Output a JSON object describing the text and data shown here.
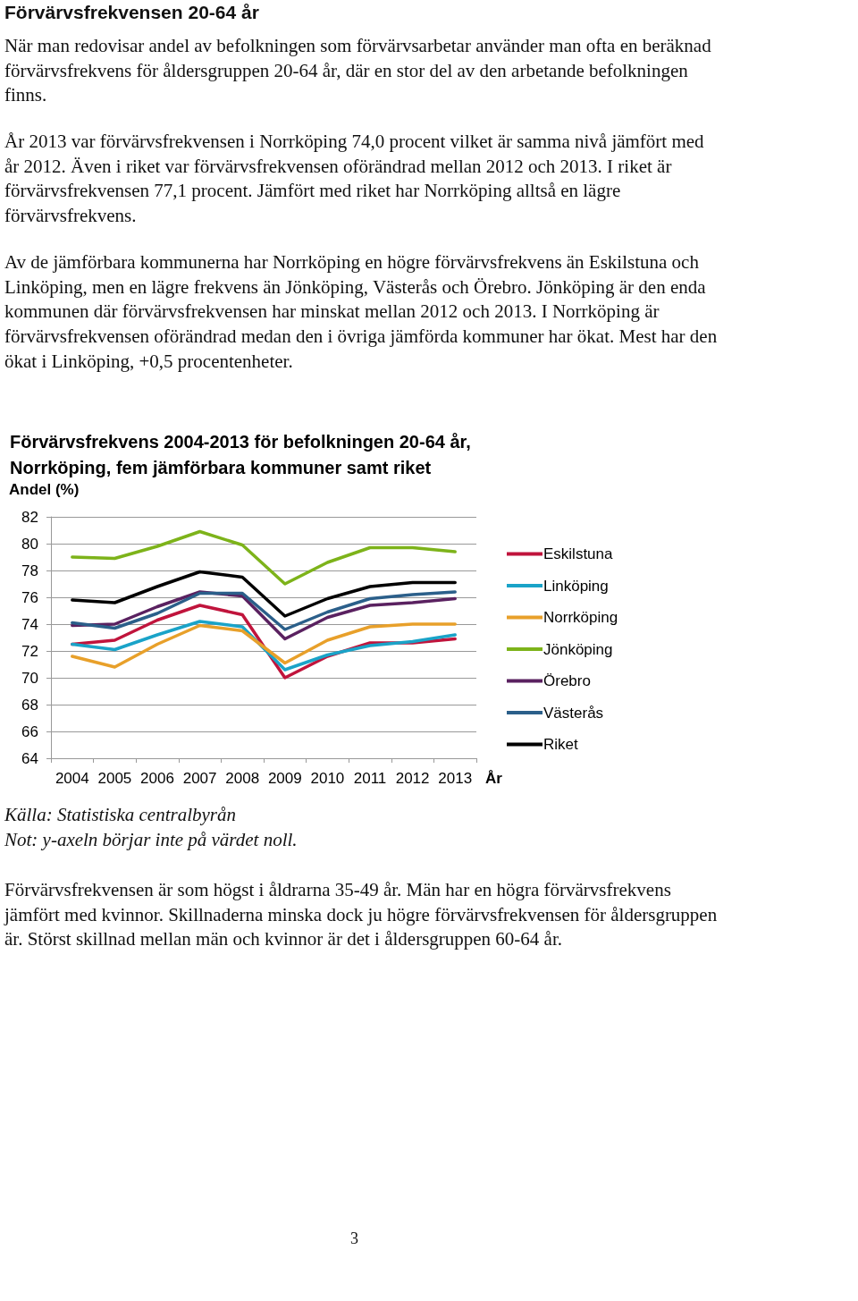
{
  "chart_data": {
    "type": "line",
    "title": "Förvärvsfrekvens 2004-2013 för befolkningen 20-64 år,\nNorrköping, fem jämförbara kommuner samt riket",
    "ylabel": "Andel (%)",
    "xlabel": "År",
    "annotations": [
      "Förvärvsfrekvensen 20-64 år",
      "När man redovisar andel av befolkningen som förvärvsarbetar använder man ofta en beräknad förvärvsfrekvens för åldersgruppen 20-64 år, där en stor del av den arbetande befolkningen finns.",
      "År 2013 var förvärvsfrekvensen i Norrköping 74,0 procent vilket är samma nivå jämfört med år 2012. Även i riket var förvärvsfrekvensen oförändrad mellan 2012 och 2013. I riket är förvärvsfrekvensen 77,1 procent. Jämfört med riket har Norrköping alltså en lägre förvärvsfrekvens.",
      "Av de jämförbara kommunerna har Norrköping en högre förvärvsfrekvens än Eskilstuna och Linköping, men en lägre frekvens än Jönköping, Västerås och Örebro. Jönköping är den enda kommunen där förvärvsfrekvensen har minskat mellan 2012 och 2013. I Norrköping är förvärvsfrekvensen oförändrad medan den i övriga jämförda kommuner har ökat. Mest har den ökat i Linköping, +0,5 procentenheter.",
      "Källa: Statistiska centralbyrån",
      "Not: y-axeln börjar inte på värdet noll.",
      "Förvärvsfrekvensen är som högst i åldrarna 35-49 år. Män har en högra förvärvsfrekvens jämfört med kvinnor. Skillnaderna minska dock ju högre förvärvsfrekvensen för åldersgruppen är. Störst skillnad mellan män och kvinnor är det i åldersgruppen 60-64 år.",
      "3"
    ],
    "categories": [
      "2004",
      "2005",
      "2006",
      "2007",
      "2008",
      "2009",
      "2010",
      "2011",
      "2012",
      "2013"
    ],
    "series": [
      {
        "name": "Eskilstuna",
        "color": "#c0143c",
        "values": [
          72.5,
          72.8,
          74.3,
          75.4,
          74.7,
          70.0,
          71.6,
          72.6,
          72.6,
          72.9
        ]
      },
      {
        "name": "Linköping",
        "color": "#1aa3c8",
        "values": [
          72.5,
          72.1,
          73.2,
          74.2,
          73.8,
          70.6,
          71.7,
          72.4,
          72.7,
          73.2
        ]
      },
      {
        "name": "Norrköping",
        "color": "#e8a02a",
        "values": [
          71.6,
          70.8,
          72.5,
          73.9,
          73.5,
          71.1,
          72.8,
          73.8,
          74.0,
          74.0
        ]
      },
      {
        "name": "Jönköping",
        "color": "#7db31a",
        "values": [
          79.0,
          78.9,
          79.8,
          80.9,
          79.9,
          77.0,
          78.6,
          79.7,
          79.7,
          79.4
        ]
      },
      {
        "name": "Örebro",
        "color": "#5a2160",
        "values": [
          73.9,
          74.0,
          75.3,
          76.4,
          76.1,
          72.9,
          74.5,
          75.4,
          75.6,
          75.9
        ]
      },
      {
        "name": "Västerås",
        "color": "#2b5f8a",
        "values": [
          74.1,
          73.7,
          74.8,
          76.3,
          76.3,
          73.6,
          74.9,
          75.9,
          76.2,
          76.4
        ]
      },
      {
        "name": "Riket",
        "color": "#000000",
        "values": [
          75.8,
          75.6,
          76.8,
          77.9,
          77.5,
          74.6,
          75.9,
          76.8,
          77.1,
          77.1
        ]
      }
    ],
    "ylim": [
      64,
      82
    ],
    "yticks": [
      64,
      66,
      68,
      70,
      72,
      74,
      76,
      78,
      80,
      82
    ],
    "grid": "y",
    "legend": "right",
    "marker": "none",
    "line_style": "solid"
  }
}
